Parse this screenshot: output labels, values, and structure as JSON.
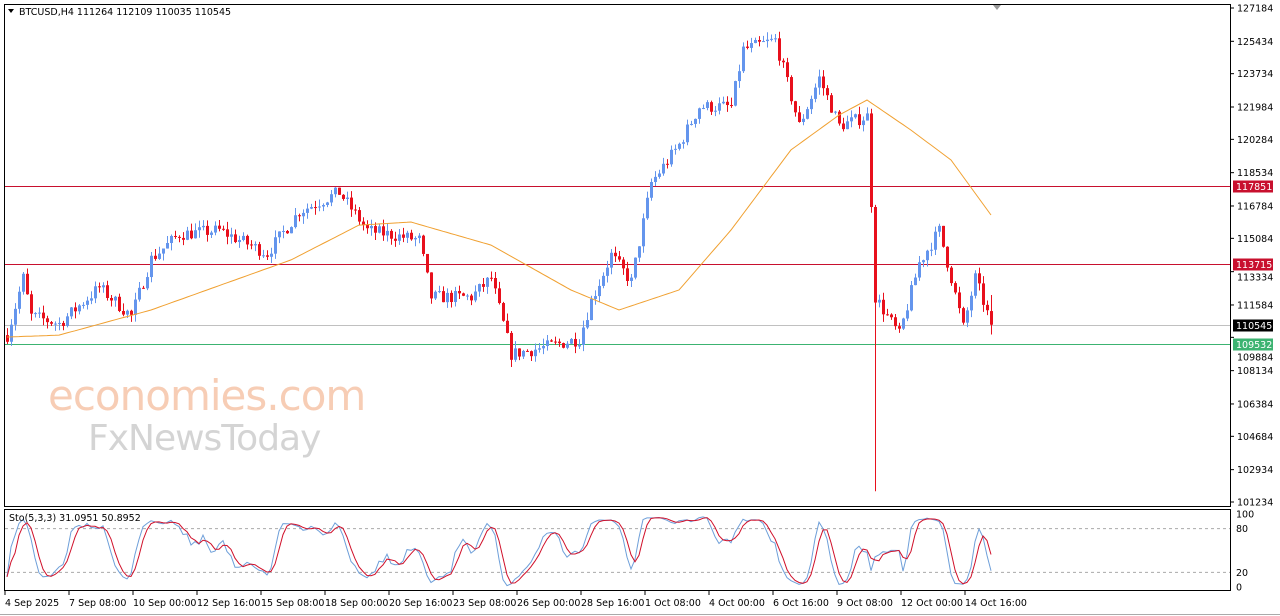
{
  "header": {
    "symbol_line": "BTCUSD,H4  111264 112109 110035 110545"
  },
  "indicator": {
    "label": "Sto(5,3,3) 31.0951 50.8952",
    "levels": [
      "100",
      "80",
      "20",
      "0"
    ]
  },
  "logo": {
    "line1": "economies.com",
    "line2": "FxNewsToday"
  },
  "colors": {
    "bull": "#6495ed",
    "bear": "#e8101c",
    "ma": "#f0a030",
    "resistance": "#c8102e",
    "support": "#3cb371",
    "current": "#000000",
    "sto_main": "#6e9fd9",
    "sto_signal": "#d0102a"
  },
  "chart_data": {
    "type": "candlestick",
    "symbol": "BTCUSD",
    "timeframe": "H4",
    "last_candle": {
      "open": 111264,
      "high": 112109,
      "low": 110035,
      "close": 110545
    },
    "ylim": [
      101234,
      127184
    ],
    "y_ticks": [
      "127184",
      "125434",
      "123734",
      "121984",
      "120284",
      "118534",
      "116784",
      "115084",
      "113334",
      "111584",
      "109884",
      "108134",
      "106384",
      "104684",
      "102934",
      "101234"
    ],
    "x_ticks": [
      "4 Sep 2025",
      "7 Sep 08:00",
      "10 Sep 00:00",
      "12 Sep 16:00",
      "15 Sep 08:00",
      "18 Sep 00:00",
      "20 Sep 16:00",
      "23 Sep 08:00",
      "26 Sep 00:00",
      "28 Sep 16:00",
      "1 Oct 08:00",
      "4 Oct 00:00",
      "6 Oct 16:00",
      "9 Oct 08:00",
      "12 Oct 00:00",
      "14 Oct 16:00"
    ],
    "candle_count": 247,
    "close_path": [
      [
        0,
        110000
      ],
      [
        4,
        113000
      ],
      [
        6,
        111000
      ],
      [
        13,
        110600
      ],
      [
        23,
        112500
      ],
      [
        31,
        111000
      ],
      [
        36,
        114000
      ],
      [
        43,
        115300
      ],
      [
        53,
        115500
      ],
      [
        65,
        114300
      ],
      [
        73,
        116500
      ],
      [
        83,
        117500
      ],
      [
        90,
        115500
      ],
      [
        103,
        115000
      ],
      [
        106,
        112000
      ],
      [
        116,
        112000
      ],
      [
        121,
        113000
      ],
      [
        126,
        109000
      ],
      [
        133,
        109300
      ],
      [
        143,
        109800
      ],
      [
        146,
        111800
      ],
      [
        151,
        114200
      ],
      [
        156,
        112800
      ],
      [
        161,
        118000
      ],
      [
        168,
        120000
      ],
      [
        173,
        122000
      ],
      [
        181,
        122000
      ],
      [
        184,
        125000
      ],
      [
        192,
        125500
      ],
      [
        198,
        121000
      ],
      [
        203,
        123500
      ],
      [
        208,
        121000
      ],
      [
        215,
        121500
      ],
      [
        216,
        117000
      ],
      [
        217,
        112000
      ],
      [
        223,
        110000
      ],
      [
        228,
        113800
      ],
      [
        233,
        115500
      ],
      [
        236,
        113000
      ],
      [
        239,
        110400
      ],
      [
        242,
        113000
      ],
      [
        246,
        110545
      ]
    ],
    "spike_low": {
      "index": 217,
      "price": 101800
    },
    "moving_average": [
      [
        0,
        109900
      ],
      [
        13,
        110000
      ],
      [
        36,
        111320
      ],
      [
        71,
        113950
      ],
      [
        88,
        115780
      ],
      [
        101,
        115940
      ],
      [
        121,
        114730
      ],
      [
        141,
        112370
      ],
      [
        153,
        111320
      ],
      [
        168,
        112370
      ],
      [
        181,
        115520
      ],
      [
        196,
        119730
      ],
      [
        208,
        121560
      ],
      [
        215,
        122350
      ],
      [
        226,
        120770
      ],
      [
        236,
        119200
      ],
      [
        246,
        116310
      ]
    ],
    "horizontal_lines": [
      {
        "name": "resistance",
        "price": 117851,
        "label": "117851"
      },
      {
        "name": "resistance",
        "price": 113715,
        "label": "113715"
      },
      {
        "name": "current",
        "price": 110545,
        "label": "110545"
      },
      {
        "name": "support",
        "price": 109532,
        "label": "109532"
      }
    ],
    "stochastic": {
      "k": 5,
      "d": 3,
      "slowing": 3,
      "main": 31.0951,
      "signal": 50.8952,
      "levels": [
        20,
        80
      ]
    }
  }
}
